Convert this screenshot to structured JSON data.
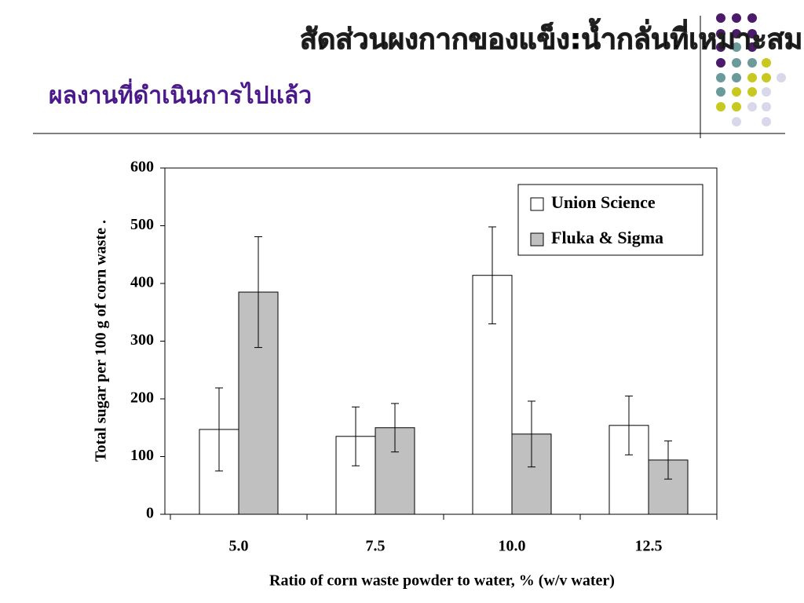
{
  "slide_title": "สัดส่วนผงกากของแข็ง:น้ำกลั่นที่เหมาะสม",
  "slide_subtitle": "ผลงานที่ดำเนินการไปแล้ว",
  "chart_data": {
    "type": "bar",
    "xlabel": "Ratio of corn waste powder to water, % (w/v water)",
    "ylabel": "Total sugar per 100 g of corn waste .",
    "categories": [
      "5.0",
      "7.5",
      "10.0",
      "12.5"
    ],
    "series": [
      {
        "name": "Union Science",
        "color": "#ffffff",
        "values": [
          147,
          135,
          414,
          154
        ],
        "errors": [
          72,
          51,
          84,
          51
        ]
      },
      {
        "name": "Fluka & Sigma",
        "color": "#c0c0c0",
        "values": [
          385,
          150,
          139,
          94
        ],
        "errors": [
          96,
          42,
          57,
          33
        ]
      }
    ],
    "ylim": [
      0,
      600
    ],
    "yticks": [
      0,
      100,
      200,
      300,
      400,
      500,
      600
    ],
    "legend": "upper right"
  }
}
